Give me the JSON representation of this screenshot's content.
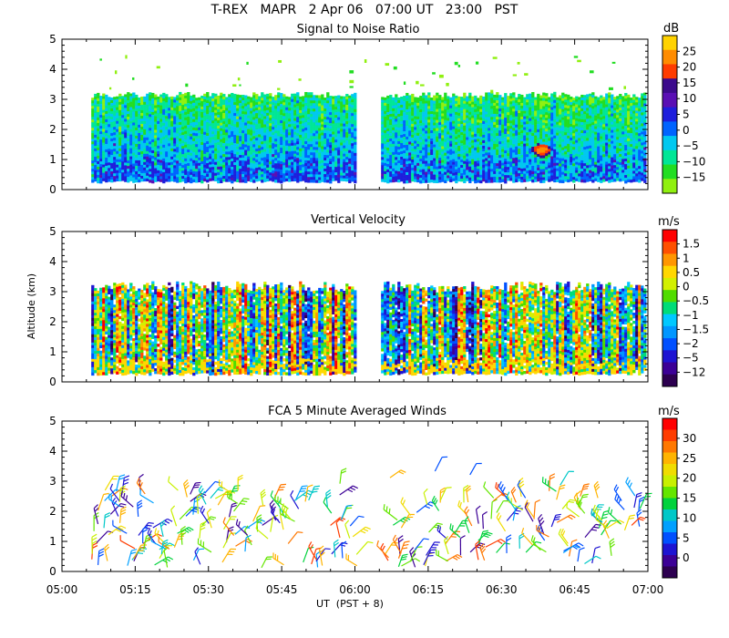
{
  "header": {
    "title": "T-REX   MAPR   2 Apr 06   07:00 UT   23:00   PST"
  },
  "axes": {
    "ylabel": "Altitude (km)",
    "xlabel": "UT  (PST + 8)",
    "x_tick_labels": [
      "05:00",
      "05:15",
      "05:30",
      "05:45",
      "06:00",
      "06:15",
      "06:30",
      "06:45",
      "07:00"
    ],
    "y_tick_labels": [
      "0",
      "1",
      "2",
      "3",
      "4",
      "5"
    ]
  },
  "chart_data": [
    {
      "type": "heatmap",
      "title": "Signal to Noise Ratio",
      "ylabel": "Altitude (km)",
      "xlim": [
        "05:00",
        "07:00"
      ],
      "ylim": [
        0,
        5
      ],
      "data_gaps": [
        {
          "from": "06:00",
          "to": "06:05"
        }
      ],
      "data_altitude_range_km": [
        0.3,
        3.2
      ],
      "colorbar": {
        "unit": "dB",
        "tick_labels": [
          "25",
          "20",
          "15",
          "10",
          "5",
          "0",
          "−5",
          "−10",
          "−15"
        ],
        "colors": [
          "#ffd200",
          "#ff8c00",
          "#ff3c00",
          "#3c0a8c",
          "#5a0fb4",
          "#1e1edc",
          "#0064ff",
          "#00c8f0",
          "#00e696",
          "#22dd22",
          "#90f010"
        ]
      }
    },
    {
      "type": "heatmap",
      "title": "Vertical Velocity",
      "ylabel": "Altitude (km)",
      "xlim": [
        "05:00",
        "07:00"
      ],
      "ylim": [
        0,
        5
      ],
      "data_gaps": [
        {
          "from": "06:00",
          "to": "06:05"
        }
      ],
      "data_altitude_range_km": [
        0.3,
        3.3
      ],
      "colorbar": {
        "unit": "m/s",
        "tick_labels": [
          "1.5",
          "1",
          "0.5",
          "0",
          "−0.5",
          "−1",
          "−1.5",
          "−2",
          "−5",
          "−12"
        ],
        "colors": [
          "#ff0000",
          "#ff5000",
          "#ff9600",
          "#ffd700",
          "#d2f000",
          "#50dc00",
          "#00dc78",
          "#00c8ff",
          "#0096ff",
          "#0050ff",
          "#1e14d2",
          "#3c0096",
          "#2d0050"
        ]
      }
    },
    {
      "type": "scatter",
      "title": "FCA 5 Minute Averaged Winds",
      "ylabel": "Altitude (km)",
      "xlim": [
        "05:00",
        "07:00"
      ],
      "ylim": [
        0,
        5
      ],
      "marker": "wind barbs",
      "colorbar": {
        "unit": "m/s",
        "tick_labels": [
          "30",
          "25",
          "20",
          "15",
          "10",
          "5",
          "0"
        ],
        "colors": [
          "#ff0000",
          "#ff3c00",
          "#ff7800",
          "#ffb400",
          "#f0dc00",
          "#c8f000",
          "#64e600",
          "#00d23c",
          "#00c8c8",
          "#00a0ff",
          "#0050ff",
          "#1e14d2",
          "#3c0096",
          "#2d0050"
        ]
      }
    }
  ]
}
